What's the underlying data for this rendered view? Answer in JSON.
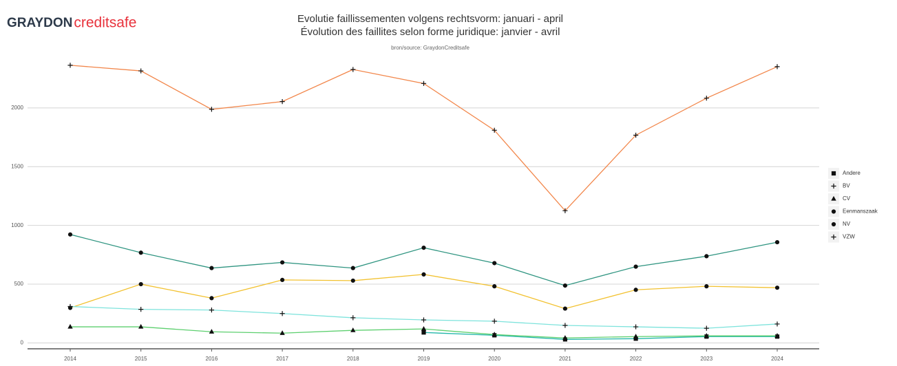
{
  "logo": {
    "brand": "GRAYDON",
    "product": "creditsafe"
  },
  "chart_data": {
    "type": "line",
    "title": "Evolutie faillissementen volgens rechtsvorm: januari - april",
    "subtitle": "Évolution des faillites selon forme juridique: janvier - avril",
    "source": "bron/source: GraydonCreditsafe",
    "categories": [
      "2014",
      "2015",
      "2016",
      "2017",
      "2018",
      "2019",
      "2020",
      "2021",
      "2022",
      "2023",
      "2024"
    ],
    "series": [
      {
        "name": "Andere",
        "color": "#1fb5a8",
        "marker": "square",
        "values": [
          null,
          null,
          null,
          null,
          null,
          89,
          65,
          30,
          36,
          54,
          54
        ]
      },
      {
        "name": "BV",
        "color": "#f2864a",
        "marker": "plus",
        "values": [
          2363,
          2315,
          1988,
          2054,
          2327,
          2208,
          1810,
          1125,
          1768,
          2083,
          2351
        ]
      },
      {
        "name": "CV",
        "color": "#5ccf6e",
        "marker": "triangle",
        "values": [
          137,
          137,
          95,
          83,
          107,
          119,
          71,
          42,
          54,
          60,
          60
        ]
      },
      {
        "name": "Eenmanszaak",
        "color": "#2e9480",
        "marker": "circle",
        "values": [
          923,
          768,
          637,
          685,
          637,
          810,
          679,
          488,
          649,
          738,
          857
        ]
      },
      {
        "name": "NV",
        "color": "#f2c12e",
        "marker": "circle",
        "values": [
          298,
          500,
          381,
          536,
          530,
          583,
          482,
          292,
          452,
          482,
          470
        ]
      },
      {
        "name": "VZW",
        "color": "#7de3dc",
        "marker": "plus",
        "values": [
          310,
          286,
          280,
          250,
          214,
          196,
          185,
          149,
          137,
          125,
          161
        ]
      }
    ],
    "ylim": [
      -50,
      2450
    ],
    "yticks": [
      0,
      500,
      1000,
      1500,
      2000
    ],
    "grid": true,
    "legend": "right"
  }
}
